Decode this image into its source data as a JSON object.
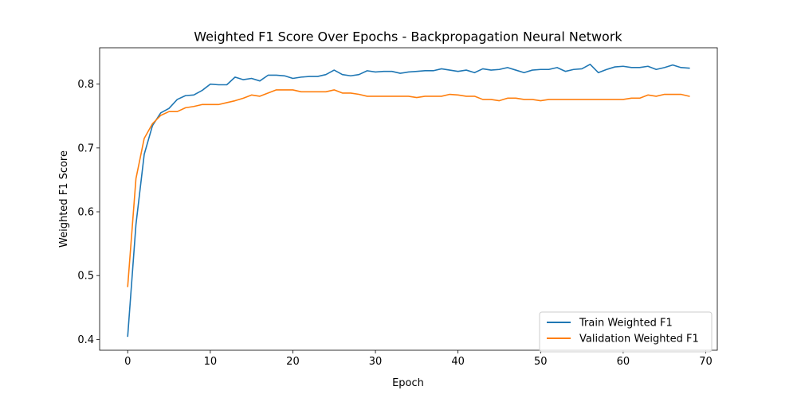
{
  "chart_data": {
    "type": "line",
    "title": "Weighted F1 Score Over Epochs - Backpropagation Neural Network",
    "xlabel": "Epoch",
    "ylabel": "Weighted F1 Score",
    "xlim": [
      -3.4,
      71.4
    ],
    "ylim": [
      0.383,
      0.857
    ],
    "xticks": [
      0,
      10,
      20,
      30,
      40,
      50,
      60,
      70
    ],
    "xtick_labels": [
      "0",
      "10",
      "20",
      "30",
      "40",
      "50",
      "60",
      "70"
    ],
    "yticks": [
      0.4,
      0.5,
      0.6,
      0.7,
      0.8
    ],
    "ytick_labels": [
      "0.4",
      "0.5",
      "0.6",
      "0.7",
      "0.8"
    ],
    "grid": false,
    "legend_position": "lower right",
    "series": [
      {
        "name": "Train Weighted F1",
        "color": "#1f77b4",
        "x": [
          0,
          1,
          2,
          3,
          4,
          5,
          6,
          7,
          8,
          9,
          10,
          11,
          12,
          13,
          14,
          15,
          16,
          17,
          18,
          19,
          20,
          21,
          22,
          23,
          24,
          25,
          26,
          27,
          28,
          29,
          30,
          31,
          32,
          33,
          34,
          35,
          36,
          37,
          38,
          39,
          40,
          41,
          42,
          43,
          44,
          45,
          46,
          47,
          48,
          49,
          50,
          51,
          52,
          53,
          54,
          55,
          56,
          57,
          58,
          59,
          60,
          61,
          62,
          63,
          64,
          65,
          66,
          67,
          68
        ],
        "values": [
          0.405,
          0.58,
          0.69,
          0.735,
          0.755,
          0.762,
          0.776,
          0.782,
          0.783,
          0.79,
          0.8,
          0.799,
          0.799,
          0.811,
          0.807,
          0.809,
          0.805,
          0.814,
          0.814,
          0.813,
          0.809,
          0.811,
          0.812,
          0.812,
          0.815,
          0.822,
          0.815,
          0.813,
          0.815,
          0.821,
          0.819,
          0.82,
          0.82,
          0.817,
          0.819,
          0.82,
          0.821,
          0.821,
          0.824,
          0.822,
          0.82,
          0.822,
          0.818,
          0.824,
          0.822,
          0.823,
          0.826,
          0.822,
          0.818,
          0.822,
          0.823,
          0.823,
          0.826,
          0.82,
          0.823,
          0.824,
          0.831,
          0.818,
          0.823,
          0.827,
          0.828,
          0.826,
          0.826,
          0.828,
          0.823,
          0.826,
          0.83,
          0.826,
          0.825
        ]
      },
      {
        "name": "Validation Weighted F1",
        "color": "#ff7f0e",
        "x": [
          0,
          1,
          2,
          3,
          4,
          5,
          6,
          7,
          8,
          9,
          10,
          11,
          12,
          13,
          14,
          15,
          16,
          17,
          18,
          19,
          20,
          21,
          22,
          23,
          24,
          25,
          26,
          27,
          28,
          29,
          30,
          31,
          32,
          33,
          34,
          35,
          36,
          37,
          38,
          39,
          40,
          41,
          42,
          43,
          44,
          45,
          46,
          47,
          48,
          49,
          50,
          51,
          52,
          53,
          54,
          55,
          56,
          57,
          58,
          59,
          60,
          61,
          62,
          63,
          64,
          65,
          66,
          67,
          68
        ],
        "values": [
          0.483,
          0.652,
          0.715,
          0.738,
          0.751,
          0.757,
          0.757,
          0.763,
          0.765,
          0.768,
          0.768,
          0.768,
          0.771,
          0.774,
          0.778,
          0.783,
          0.781,
          0.786,
          0.791,
          0.791,
          0.791,
          0.788,
          0.788,
          0.788,
          0.788,
          0.791,
          0.786,
          0.786,
          0.784,
          0.781,
          0.781,
          0.781,
          0.781,
          0.781,
          0.781,
          0.779,
          0.781,
          0.781,
          0.781,
          0.784,
          0.783,
          0.781,
          0.781,
          0.776,
          0.776,
          0.774,
          0.778,
          0.778,
          0.776,
          0.776,
          0.774,
          0.776,
          0.776,
          0.776,
          0.776,
          0.776,
          0.776,
          0.776,
          0.776,
          0.776,
          0.776,
          0.778,
          0.778,
          0.783,
          0.781,
          0.784,
          0.784,
          0.784,
          0.781
        ]
      }
    ]
  }
}
